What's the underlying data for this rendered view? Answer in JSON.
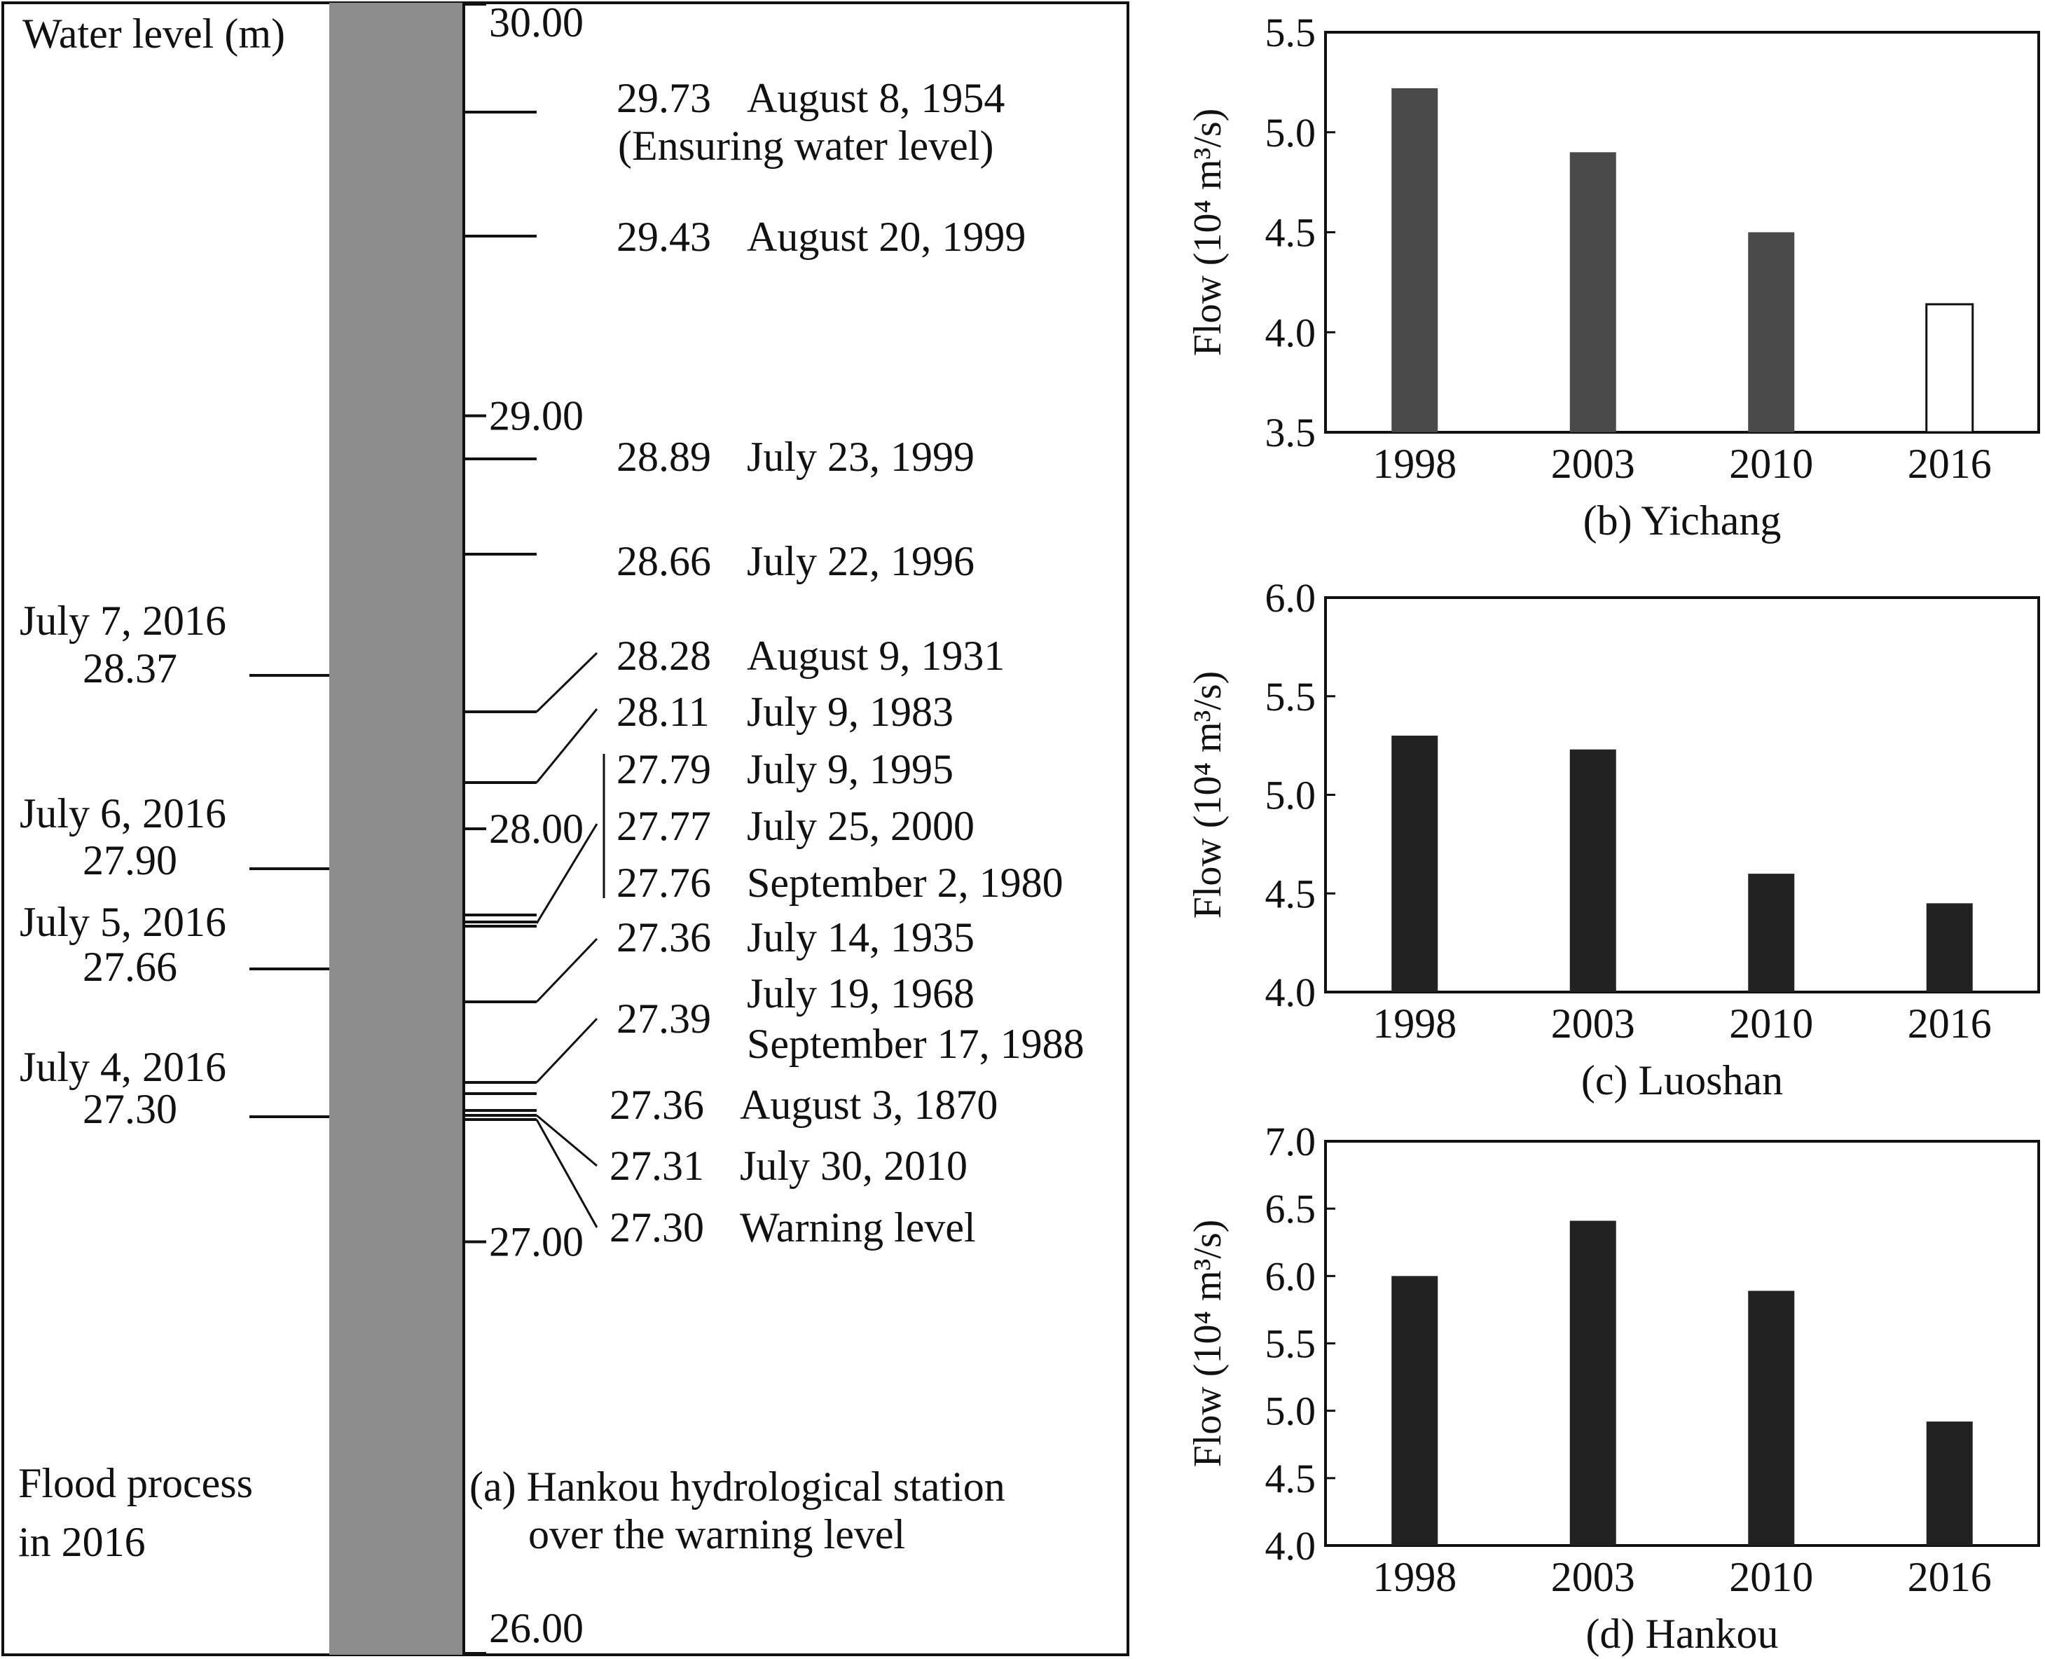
{
  "panel_a": {
    "axis_title": "Water level (m)",
    "caption_line1": "(a) Hankou hydrological station",
    "caption_line2": "over the warning level",
    "flood_label_line1": "Flood process",
    "flood_label_line2": "in 2016",
    "ticks": [
      {
        "value": 30.0,
        "label": "30.00"
      },
      {
        "value": 29.0,
        "label": "29.00"
      },
      {
        "value": 28.0,
        "label": "28.00"
      },
      {
        "value": 27.0,
        "label": "27.00"
      },
      {
        "value": 26.0,
        "label": "26.00"
      }
    ],
    "records": [
      {
        "level": 29.73,
        "value": "29.73",
        "lines": [
          "August 8, 1954",
          "(Ensuring water level)"
        ]
      },
      {
        "level": 29.43,
        "value": "29.43",
        "lines": [
          "August 20, 1999"
        ]
      },
      {
        "level": 28.89,
        "value": "28.89",
        "lines": [
          "July 23, 1999"
        ]
      },
      {
        "level": 28.66,
        "value": "28.66",
        "lines": [
          "July 22, 1996"
        ]
      },
      {
        "level": 28.28,
        "value": "28.28",
        "lines": [
          "August 9, 1931"
        ]
      },
      {
        "level": 28.11,
        "value": "28.11",
        "lines": [
          "July 9, 1983"
        ]
      },
      {
        "level": 27.79,
        "value": "27.79",
        "lines": [
          "July 9, 1995"
        ]
      },
      {
        "level": 27.77,
        "value": "27.77",
        "lines": [
          "July 25, 2000"
        ]
      },
      {
        "level": 27.76,
        "value": "27.76",
        "lines": [
          "September 2, 1980"
        ]
      },
      {
        "level": 27.36,
        "value": "27.36",
        "lines": [
          "July 14, 1935"
        ]
      },
      {
        "level": 27.39,
        "value": "27.39",
        "lines": [
          "July 19, 1968",
          "September 17, 1988"
        ]
      },
      {
        "level": 27.36,
        "value": "27.36",
        "lines": [
          "August 3, 1870"
        ]
      },
      {
        "level": 27.31,
        "value": "27.31",
        "lines": [
          "July 30, 2010"
        ]
      },
      {
        "level": 27.3,
        "value": "27.30",
        "lines": [
          "Warning level"
        ]
      }
    ],
    "flood_2016": [
      {
        "date": "July 7, 2016",
        "value": "28.37",
        "level": 28.37
      },
      {
        "date": "July 6, 2016",
        "value": "27.90",
        "level": 27.9
      },
      {
        "date": "July 5, 2016",
        "value": "27.66",
        "level": 27.66
      },
      {
        "date": "July 4, 2016",
        "value": "27.30",
        "level": 27.3
      }
    ]
  },
  "chart_data": [
    {
      "type": "bar",
      "title": "(b) Yichang",
      "ylabel": "Flow (10⁴ m³/s)",
      "categories": [
        "1998",
        "2003",
        "2010",
        "2016"
      ],
      "values": [
        5.22,
        4.9,
        4.5,
        4.14
      ],
      "ylim": [
        3.5,
        5.5
      ],
      "yticks": [
        "3.5",
        "4.0",
        "4.5",
        "5.0",
        "5.5"
      ],
      "bar_colors": [
        "#4a4a4a",
        "#4a4a4a",
        "#4a4a4a",
        "#ffffff"
      ]
    },
    {
      "type": "bar",
      "title": "(c) Luoshan",
      "ylabel": "Flow (10⁴ m³/s)",
      "categories": [
        "1998",
        "2003",
        "2010",
        "2016"
      ],
      "values": [
        5.3,
        5.23,
        4.6,
        4.45
      ],
      "ylim": [
        4.0,
        6.0
      ],
      "yticks": [
        "4.0",
        "4.5",
        "5.0",
        "5.5",
        "6.0"
      ],
      "bar_colors": [
        "#222222",
        "#222222",
        "#222222",
        "#222222"
      ]
    },
    {
      "type": "bar",
      "title": "(d) Hankou",
      "ylabel": "Flow (10⁴ m³/s)",
      "categories": [
        "1998",
        "2003",
        "2010",
        "2016"
      ],
      "values": [
        6.0,
        6.41,
        5.89,
        4.92
      ],
      "ylim": [
        4.0,
        7.0
      ],
      "yticks": [
        "4.0",
        "4.5",
        "5.0",
        "5.5",
        "6.0",
        "6.5",
        "7.0"
      ],
      "bar_colors": [
        "#222222",
        "#222222",
        "#222222",
        "#222222"
      ]
    }
  ]
}
